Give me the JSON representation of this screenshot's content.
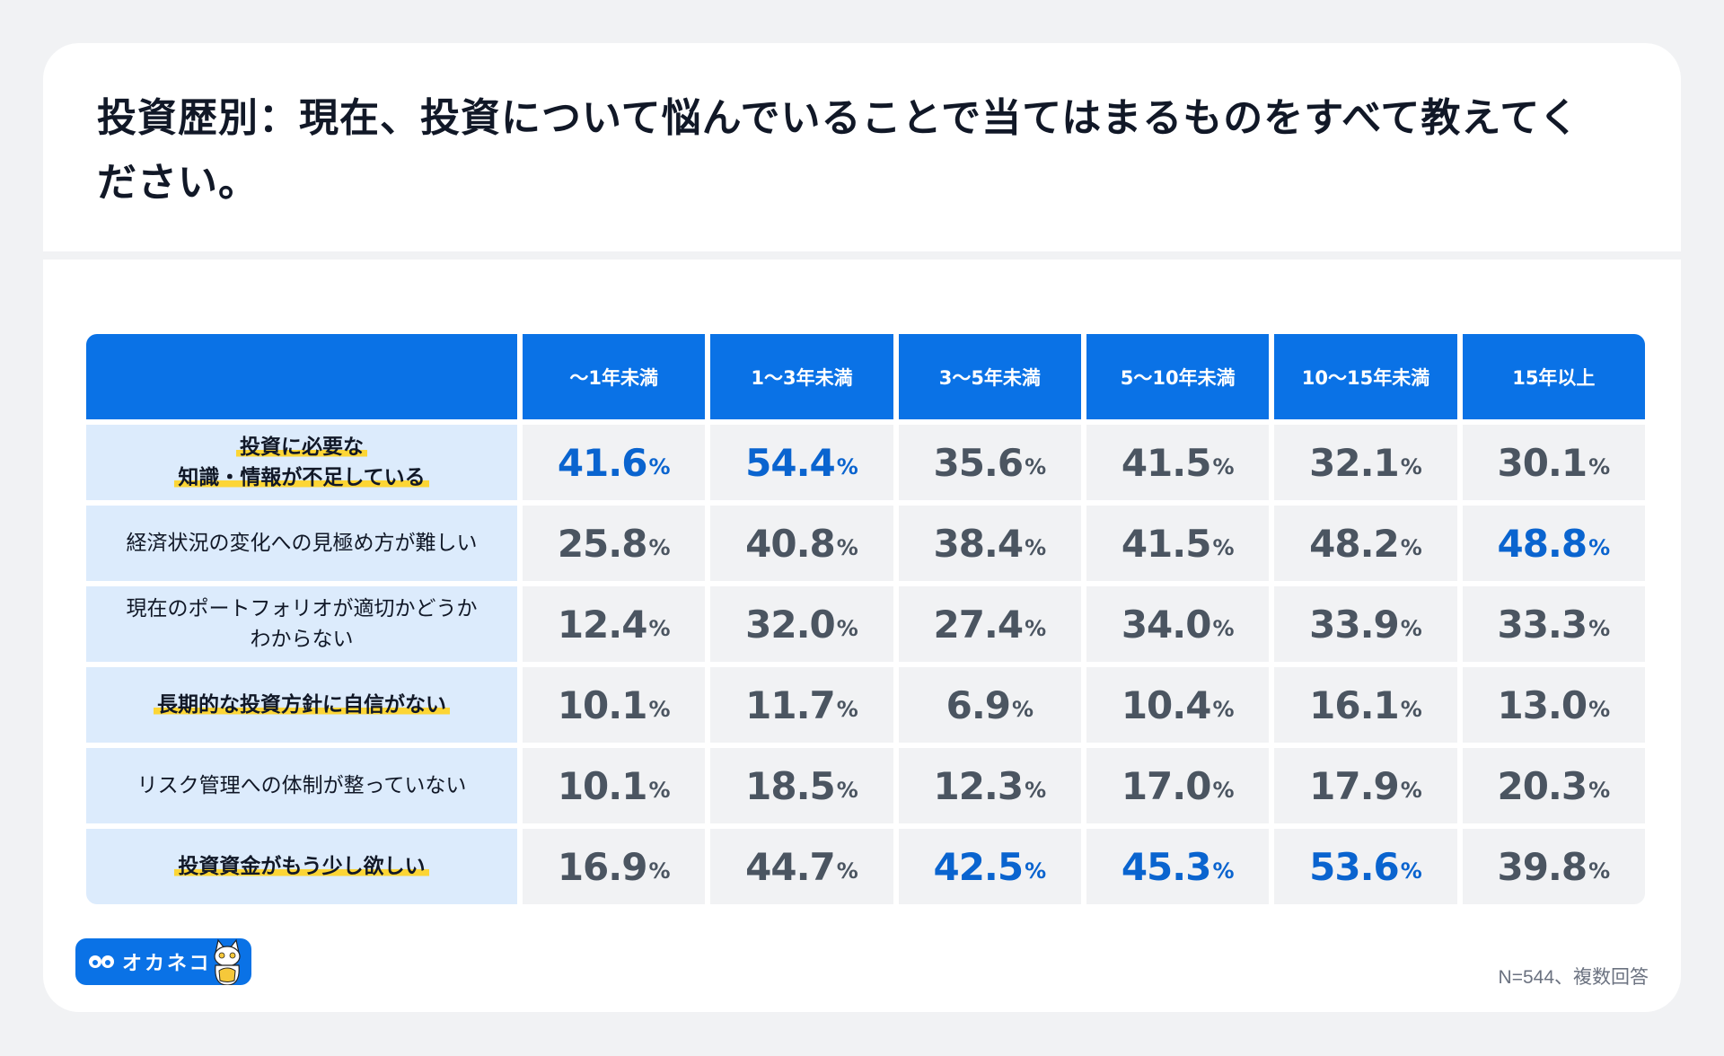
{
  "title": "投資歴別：現在、投資について悩んでいることで当てはまるものをすべて教えてください。",
  "table": {
    "columns": [
      "〜1年未満",
      "1〜3年未満",
      "3〜5年未満",
      "5〜10年未満",
      "10〜15年未満",
      "15年以上"
    ],
    "rows": [
      {
        "label_line1": "投資に必要な",
        "label_line2": "知識・情報が不足している",
        "highlighted": true,
        "values": [
          "41.6",
          "54.4",
          "35.6",
          "41.5",
          "32.1",
          "30.1"
        ],
        "max_flags": [
          true,
          true,
          false,
          false,
          false,
          false
        ]
      },
      {
        "label_line1": "経済状況の変化への見極め方が難しい",
        "label_line2": "",
        "highlighted": false,
        "values": [
          "25.8",
          "40.8",
          "38.4",
          "41.5",
          "48.2",
          "48.8"
        ],
        "max_flags": [
          false,
          false,
          false,
          false,
          false,
          true
        ]
      },
      {
        "label_line1": "現在のポートフォリオが適切かどうか",
        "label_line2": "わからない",
        "highlighted": false,
        "values": [
          "12.4",
          "32.0",
          "27.4",
          "34.0",
          "33.9",
          "33.3"
        ],
        "max_flags": [
          false,
          false,
          false,
          false,
          false,
          false
        ]
      },
      {
        "label_line1": "長期的な投資方針に自信がない",
        "label_line2": "",
        "highlighted": true,
        "values": [
          "10.1",
          "11.7",
          "6.9",
          "10.4",
          "16.1",
          "13.0"
        ],
        "max_flags": [
          false,
          false,
          false,
          false,
          false,
          false
        ]
      },
      {
        "label_line1": "リスク管理への体制が整っていない",
        "label_line2": "",
        "highlighted": false,
        "values": [
          "10.1",
          "18.5",
          "12.3",
          "17.0",
          "17.9",
          "20.3"
        ],
        "max_flags": [
          false,
          false,
          false,
          false,
          false,
          false
        ]
      },
      {
        "label_line1": "投資資金がもう少し欲しい",
        "label_line2": "",
        "highlighted": true,
        "values": [
          "16.9",
          "44.7",
          "42.5",
          "45.3",
          "53.6",
          "39.8"
        ],
        "max_flags": [
          false,
          false,
          true,
          true,
          true,
          false
        ]
      }
    ],
    "unit": "%"
  },
  "footer": {
    "brand": "オカネコ",
    "note": "N=544、複数回答"
  },
  "colors": {
    "header_blue": "#0a72e6",
    "highlight_value_blue": "#0a64cf",
    "label_bg": "#dcebfc",
    "value_bg": "#f1f2f4",
    "marker_yellow": "#fcd535",
    "value_gray": "#4b5561"
  },
  "chart_data": {
    "type": "table",
    "title": "投資歴別：現在、投資について悩んでいることで当てはまるものをすべて教えてください。",
    "categories": [
      "〜1年未満",
      "1〜3年未満",
      "3〜5年未満",
      "5〜10年未満",
      "10〜15年未満",
      "15年以上"
    ],
    "series": [
      {
        "name": "投資に必要な知識・情報が不足している",
        "values": [
          41.6,
          54.4,
          35.6,
          41.5,
          32.1,
          30.1
        ]
      },
      {
        "name": "経済状況の変化への見極め方が難しい",
        "values": [
          25.8,
          40.8,
          38.4,
          41.5,
          48.2,
          48.8
        ]
      },
      {
        "name": "現在のポートフォリオが適切かどうかわからない",
        "values": [
          12.4,
          32.0,
          27.4,
          34.0,
          33.9,
          33.3
        ]
      },
      {
        "name": "長期的な投資方針に自信がない",
        "values": [
          10.1,
          11.7,
          6.9,
          10.4,
          16.1,
          13.0
        ]
      },
      {
        "name": "リスク管理への体制が整っていない",
        "values": [
          10.1,
          18.5,
          12.3,
          17.0,
          17.9,
          20.3
        ]
      },
      {
        "name": "投資資金がもう少し欲しい",
        "values": [
          16.9,
          44.7,
          42.5,
          45.3,
          53.6,
          39.8
        ]
      }
    ],
    "unit": "%",
    "annotations": [
      "N=544、複数回答"
    ]
  }
}
